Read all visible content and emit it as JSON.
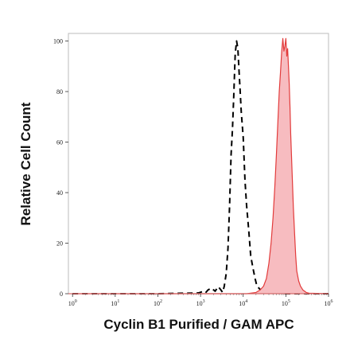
{
  "chart_data": {
    "type": "area",
    "title": "",
    "xlabel": "Cyclin B1 Purified / GAM APC",
    "ylabel": "Relative Cell Count",
    "x_scale": "log",
    "xlim": [
      0.8,
      1000000
    ],
    "ylim": [
      0,
      103
    ],
    "x_ticks": [
      {
        "value": 1,
        "base": "10",
        "exp": "0"
      },
      {
        "value": 10,
        "base": "10",
        "exp": "1"
      },
      {
        "value": 100,
        "base": "10",
        "exp": "2"
      },
      {
        "value": 1000,
        "base": "10",
        "exp": "3"
      },
      {
        "value": 10000,
        "base": "10",
        "exp": "4"
      },
      {
        "value": 100000,
        "base": "10",
        "exp": "5"
      },
      {
        "value": 1000000,
        "base": "10",
        "exp": "6"
      }
    ],
    "y_ticks": [
      "0",
      "20",
      "40",
      "60",
      "80",
      "100"
    ],
    "grid": false,
    "legend": "none",
    "series": [
      {
        "style": "dashed",
        "color": "#000000",
        "fill": "none",
        "x": [
          1,
          100,
          900,
          1100,
          1300,
          1500,
          1800,
          2200,
          2600,
          3000,
          3300,
          3600,
          4000,
          4400,
          4800,
          5200,
          5600,
          6000,
          6500,
          7000,
          7500,
          8000,
          8500,
          9000,
          10000,
          11000,
          12000,
          13500,
          15000,
          17000,
          19000,
          21000,
          24000,
          27000,
          30000,
          40000,
          60000,
          100000,
          1000000
        ],
        "y": [
          0,
          0,
          0.3,
          0.8,
          0.3,
          1.5,
          2.2,
          1.0,
          2.8,
          1.5,
          0.5,
          3,
          8,
          18,
          35,
          55,
          65,
          78,
          95,
          100,
          97,
          88,
          80,
          72,
          62,
          45,
          35,
          25,
          15,
          10,
          6,
          3,
          2,
          1,
          0.5,
          0.2,
          0.3,
          0,
          0
        ]
      },
      {
        "style": "solid",
        "color": "#e23b3b",
        "fill": "#f7bcc0",
        "x": [
          1,
          12000,
          20000,
          25000,
          30000,
          35000,
          40000,
          45000,
          50000,
          55000,
          60000,
          65000,
          70000,
          75000,
          80000,
          85000,
          90000,
          95000,
          100000,
          105000,
          110000,
          115000,
          120000,
          125000,
          130000,
          140000,
          150000,
          160000,
          170000,
          180000,
          200000,
          220000,
          250000,
          300000,
          350000,
          1000000
        ],
        "y": [
          0,
          0,
          0.5,
          1.5,
          3,
          6,
          12,
          20,
          30,
          42,
          55,
          68,
          80,
          88,
          96,
          101,
          96,
          98,
          101,
          94,
          97,
          90,
          83,
          74,
          63,
          48,
          34,
          24,
          15,
          9,
          5,
          3,
          1.5,
          0.5,
          0.2,
          0
        ]
      }
    ]
  }
}
